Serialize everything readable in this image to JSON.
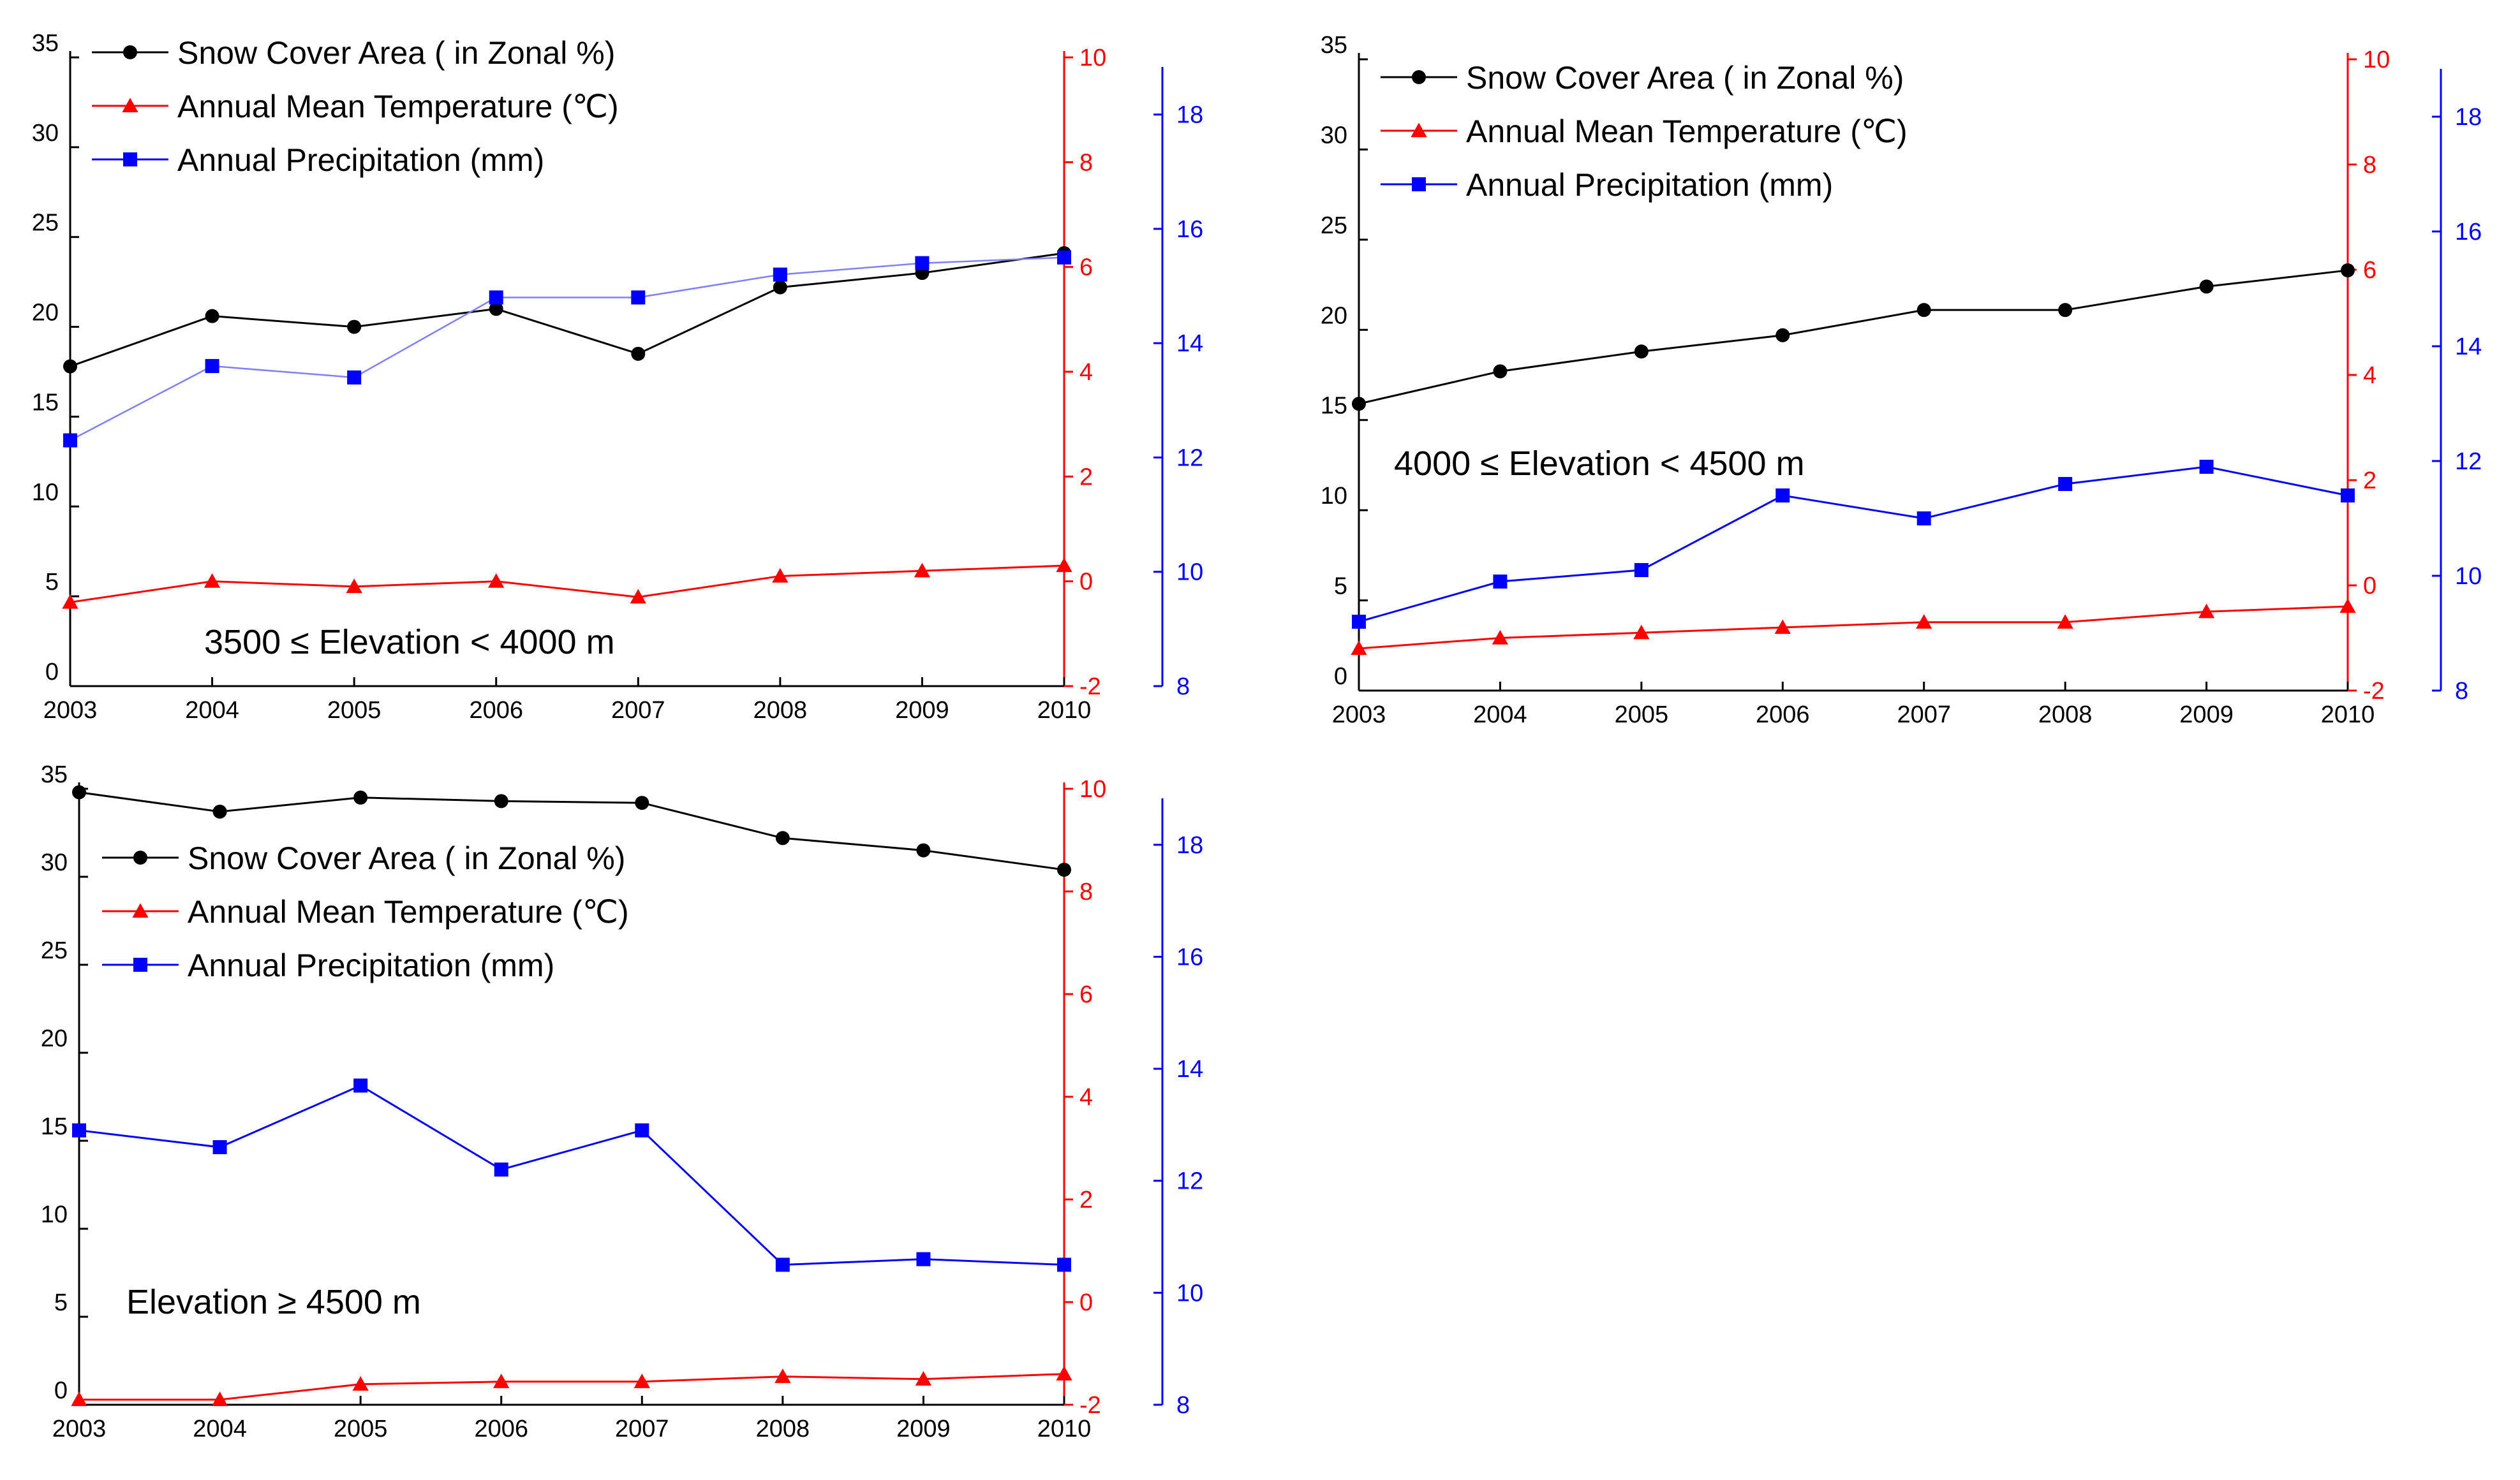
{
  "colors": {
    "snow": "#000000",
    "temp": "#ff0000",
    "precip": "#0000ff",
    "axis": "#000000",
    "background": "#ffffff"
  },
  "chart_data": [
    {
      "type": "line",
      "x": [
        2003,
        2004,
        2005,
        2006,
        2007,
        2008,
        2009,
        2010
      ],
      "xtick_labels": [
        "2003",
        "2004",
        "2005",
        "2006",
        "2007",
        "2008",
        "2009",
        "2010"
      ],
      "annotation": "3500 ≤ Elevation < 4000 m",
      "legend_position": "top-left",
      "axes": {
        "left": {
          "ylim": [
            0,
            35
          ],
          "ticks": [
            "0",
            "5",
            "10",
            "15",
            "20",
            "25",
            "30",
            "35"
          ]
        },
        "right1": {
          "ylim": [
            -2,
            10
          ],
          "ticks": [
            "-2",
            "0",
            "2",
            "4",
            "6",
            "8",
            "10"
          ]
        },
        "right2": {
          "ylim": [
            8,
            19
          ],
          "ticks": [
            "8",
            "10",
            "12",
            "14",
            "16",
            "18"
          ]
        }
      },
      "series": [
        {
          "name": "Snow Cover  Area ( in  Zonal %)",
          "axis": "left",
          "marker": "circle",
          "color": "#000000",
          "values": [
            17.8,
            20.6,
            20.0,
            21.0,
            18.5,
            22.2,
            23.0,
            24.1
          ]
        },
        {
          "name": "Annual Mean Temperature (℃)",
          "axis": "right1",
          "marker": "triangle",
          "color": "#ff0000",
          "values": [
            -0.4,
            0.0,
            -0.1,
            0.0,
            -0.3,
            0.1,
            0.2,
            0.3
          ]
        },
        {
          "name": "Annual Precipitation (mm)",
          "axis": "right2",
          "marker": "square",
          "color": "#0000ff",
          "values": [
            12.3,
            13.6,
            13.4,
            14.8,
            14.8,
            15.2,
            15.4,
            15.5
          ]
        }
      ]
    },
    {
      "type": "line",
      "x": [
        2003,
        2004,
        2005,
        2006,
        2007,
        2008,
        2009,
        2010
      ],
      "xtick_labels": [
        "2003",
        "2004",
        "2005",
        "2006",
        "2007",
        "2008",
        "2009",
        "2010"
      ],
      "annotation": "4000 ≤ Elevation < 4500 m",
      "legend_position": "top-left",
      "axes": {
        "left": {
          "ylim": [
            0,
            35
          ],
          "ticks": [
            "0",
            "5",
            "10",
            "15",
            "20",
            "25",
            "30",
            "35"
          ]
        },
        "right1": {
          "ylim": [
            -2,
            10
          ],
          "ticks": [
            "-2",
            "0",
            "2",
            "4",
            "6",
            "8",
            "10"
          ]
        },
        "right2": {
          "ylim": [
            8,
            19
          ],
          "ticks": [
            "8",
            "10",
            "12",
            "14",
            "16",
            "18"
          ]
        }
      },
      "series": [
        {
          "name": "Snow Cover  Area ( in  Zonal %)",
          "axis": "left",
          "marker": "circle",
          "color": "#000000",
          "values": [
            15.9,
            17.7,
            18.8,
            19.7,
            21.1,
            21.1,
            22.4,
            23.3
          ]
        },
        {
          "name": "Annual Mean Temperature (℃)",
          "axis": "right1",
          "marker": "triangle",
          "color": "#ff0000",
          "values": [
            -1.2,
            -1.0,
            -0.9,
            -0.8,
            -0.7,
            -0.7,
            -0.5,
            -0.4
          ]
        },
        {
          "name": "Annual Precipitation (mm)",
          "axis": "right2",
          "marker": "square",
          "color": "#0000ff",
          "values": [
            9.2,
            9.9,
            10.1,
            11.4,
            11.0,
            11.6,
            11.9,
            11.4
          ]
        }
      ]
    },
    {
      "type": "line",
      "x": [
        2003,
        2004,
        2005,
        2006,
        2007,
        2008,
        2009,
        2010
      ],
      "xtick_labels": [
        "2003",
        "2004",
        "2005",
        "2006",
        "2007",
        "2008",
        "2009",
        "2010"
      ],
      "annotation": "Elevation ≥ 4500 m",
      "legend_position": "top-left",
      "axes": {
        "left": {
          "ylim": [
            0,
            35
          ],
          "ticks": [
            "0",
            "5",
            "10",
            "15",
            "20",
            "25",
            "30",
            "35"
          ]
        },
        "right1": {
          "ylim": [
            -2,
            10
          ],
          "ticks": [
            "-2",
            "0",
            "2",
            "4",
            "6",
            "8",
            "10"
          ]
        },
        "right2": {
          "ylim": [
            8,
            19
          ],
          "ticks": [
            "8",
            "10",
            "12",
            "14",
            "16",
            "18"
          ]
        }
      },
      "series": [
        {
          "name": "Snow Cover  Area ( in  Zonal %)",
          "axis": "left",
          "marker": "circle",
          "color": "#000000",
          "values": [
            34.8,
            33.7,
            34.5,
            34.3,
            34.2,
            32.2,
            31.5,
            30.4
          ]
        },
        {
          "name": "Annual Mean Temperature (℃)",
          "axis": "right1",
          "marker": "triangle",
          "color": "#ff0000",
          "values": [
            -1.9,
            -1.9,
            -1.6,
            -1.55,
            -1.55,
            -1.45,
            -1.5,
            -1.4
          ]
        },
        {
          "name": "Annual Precipitation (mm)",
          "axis": "right2",
          "marker": "square",
          "color": "#0000ff",
          "values": [
            12.9,
            12.6,
            13.7,
            12.2,
            12.9,
            10.5,
            10.6,
            10.5
          ]
        }
      ]
    }
  ]
}
